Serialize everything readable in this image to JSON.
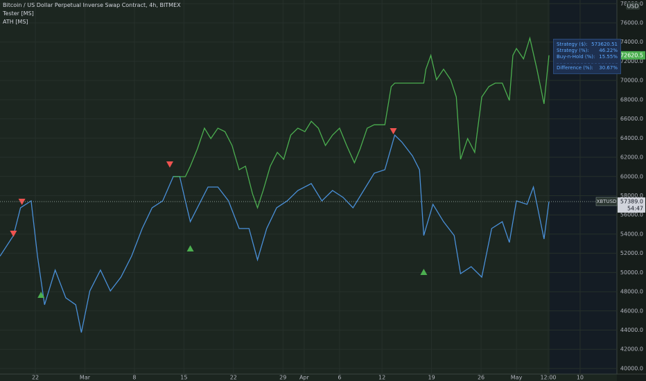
{
  "chart_data": {
    "type": "line",
    "title": "Bitcoin / US Dollar Perpetual Inverse Swap Contract, 4h, BITMEX",
    "indicators": [
      "Tester [MS]",
      "ATH [MS]"
    ],
    "currency": "USD",
    "xlim": [
      2,
      89.2
    ],
    "ylim": [
      39420,
      78380
    ],
    "grid": true,
    "xticks": [
      {
        "value": 7,
        "label": "22"
      },
      {
        "value": 14,
        "label": "Mar"
      },
      {
        "value": 21,
        "label": "8"
      },
      {
        "value": 28,
        "label": "15"
      },
      {
        "value": 35,
        "label": "22"
      },
      {
        "value": 42,
        "label": "29"
      },
      {
        "value": 45,
        "label": "Apr"
      },
      {
        "value": 50,
        "label": "6"
      },
      {
        "value": 56,
        "label": "12"
      },
      {
        "value": 63,
        "label": "19"
      },
      {
        "value": 70,
        "label": "26"
      },
      {
        "value": 75,
        "label": "May"
      },
      {
        "value": 79.5,
        "label": "12:00"
      },
      {
        "value": 84,
        "label": "10"
      }
    ],
    "yticks": [
      {
        "value": 40000,
        "label": "40000.0"
      },
      {
        "value": 42000,
        "label": "42000.0"
      },
      {
        "value": 44000,
        "label": "44000.0"
      },
      {
        "value": 46000,
        "label": "46000.0"
      },
      {
        "value": 48000,
        "label": "48000.0"
      },
      {
        "value": 50000,
        "label": "50000.0"
      },
      {
        "value": 52000,
        "label": "52000.0"
      },
      {
        "value": 54000,
        "label": "54000.0"
      },
      {
        "value": 56000,
        "label": "56000.0"
      },
      {
        "value": 58000,
        "label": "58000.0"
      },
      {
        "value": 60000,
        "label": "60000.0"
      },
      {
        "value": 62000,
        "label": "62000.0"
      },
      {
        "value": 64000,
        "label": "64000.0"
      },
      {
        "value": 66000,
        "label": "66000.0"
      },
      {
        "value": 68000,
        "label": "68000.0"
      },
      {
        "value": 70000,
        "label": "70000.0"
      },
      {
        "value": 72000,
        "label": "72000.0"
      },
      {
        "value": 74000,
        "label": "74000.0"
      },
      {
        "value": 76000,
        "label": "76000.0"
      },
      {
        "value": 78000,
        "label": "78000.0"
      }
    ],
    "series": [
      {
        "name": "XBTUSD",
        "color": "#4a90d9",
        "x": [
          2.0,
          3.9,
          4.9,
          6.4,
          7.3,
          8.3,
          9.8,
          11.3,
          12.7,
          13.5,
          14.7,
          16.2,
          17.6,
          19.1,
          20.6,
          22.1,
          23.5,
          25.0,
          26.5,
          27.4,
          28.2,
          28.9,
          30.4,
          31.4,
          32.8,
          34.3,
          35.8,
          37.2,
          38.4,
          39.7,
          41.1,
          42.6,
          44.1,
          46.0,
          47.5,
          49.0,
          50.5,
          51.9,
          53.4,
          54.9,
          56.4,
          57.8,
          58.8,
          60.3,
          61.3,
          61.9,
          63.2,
          64.7,
          66.2,
          67.1,
          68.6,
          70.1,
          71.5,
          73.0,
          74.0,
          75.0,
          76.5,
          77.4,
          78.4,
          78.9,
          79.6
        ],
        "values": [
          51700,
          53850,
          56740,
          57460,
          51700,
          46640,
          50250,
          47360,
          46640,
          43750,
          48080,
          50250,
          48080,
          49520,
          51700,
          54580,
          56740,
          57460,
          60000,
          60000,
          57460,
          55290,
          57460,
          58900,
          58900,
          57460,
          54580,
          54580,
          51320,
          54580,
          56740,
          57460,
          58540,
          59260,
          57460,
          58540,
          57820,
          56740,
          58540,
          60340,
          60700,
          64310,
          63590,
          62150,
          60700,
          53850,
          57100,
          55290,
          53850,
          49880,
          50610,
          49520,
          54580,
          55290,
          53130,
          57460,
          57100,
          58900,
          55290,
          53490,
          57389
        ]
      },
      {
        "name": "Strategy",
        "color": "#4caf50",
        "x": [
          26.5,
          28.2,
          28.9,
          29.9,
          30.9,
          31.8,
          32.8,
          33.8,
          34.8,
          35.8,
          36.7,
          37.7,
          38.4,
          39.2,
          40.2,
          41.2,
          42.1,
          43.1,
          44.1,
          45.1,
          46.0,
          47.0,
          48.0,
          49.0,
          50.0,
          51.0,
          52.1,
          52.9,
          53.9,
          54.9,
          56.4,
          57.3,
          57.8,
          61.9,
          62.2,
          62.9,
          63.7,
          64.7,
          65.7,
          66.5,
          67.1,
          68.1,
          69.1,
          70.1,
          71.1,
          72.0,
          73.0,
          74.0,
          74.5,
          75.0,
          76.0,
          76.9,
          77.9,
          78.9,
          79.6
        ],
        "values": [
          59980,
          59980,
          61065,
          62870,
          65030,
          63950,
          65030,
          64670,
          63230,
          60700,
          61065,
          58180,
          56740,
          58540,
          61065,
          62510,
          61790,
          64310,
          65030,
          64670,
          65750,
          65030,
          63230,
          64310,
          65030,
          63230,
          61430,
          62870,
          65030,
          65390,
          65390,
          69360,
          69720,
          69720,
          71170,
          72610,
          70080,
          71170,
          70080,
          68280,
          61790,
          63950,
          62510,
          68280,
          69360,
          69720,
          69720,
          67920,
          72610,
          73330,
          72250,
          74410,
          71170,
          67560,
          72620.5
        ]
      }
    ],
    "sell_signals": {
      "color": "#ef5350",
      "x": [
        3.9,
        5.1,
        26.0,
        57.6
      ],
      "values": [
        53990,
        57320,
        61210,
        64670
      ]
    },
    "buy_signals": {
      "color": "#4caf50",
      "x": [
        7.8,
        28.9,
        61.9
      ],
      "values": [
        47720,
        52550,
        50100
      ]
    },
    "equity_last": {
      "value": 72620.5,
      "label": "72620.5"
    },
    "last_price": {
      "value": 57389.0,
      "label": "57389.0"
    },
    "symbol": "XBTUSD",
    "countdown": "54:47",
    "stats": [
      [
        "Strategy ($):",
        "573620.51"
      ],
      [
        "Strategy (%):",
        "46.22%"
      ],
      [
        "Buy-n-Hold (%):",
        "15.55%"
      ],
      [
        "Difference (%):",
        "30.67%"
      ]
    ]
  }
}
